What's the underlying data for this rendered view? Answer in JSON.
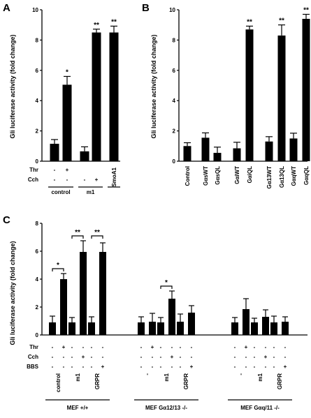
{
  "panels": [
    {
      "id": "A",
      "label": "A",
      "ylabel": "Gli luciferase activity (fold change)",
      "chart_data": {
        "type": "bar",
        "ylabel": "Gli luciferase activity (fold change)",
        "ylim": [
          0,
          10
        ],
        "yticks": [
          0,
          2,
          4,
          6,
          8,
          10
        ],
        "grid": false,
        "bars": [
          {
            "value": 1.15,
            "error": 0.28,
            "sig": ""
          },
          {
            "value": 5.05,
            "error": 0.55,
            "sig": "*"
          },
          {
            "value": 0.65,
            "error": 0.3,
            "sig": ""
          },
          {
            "value": 8.5,
            "error": 0.22,
            "sig": "**"
          },
          {
            "value": 8.5,
            "error": 0.42,
            "sig": "**"
          }
        ],
        "treatment_rows": [
          {
            "label": "Thr",
            "cells": [
              "-",
              "+",
              "",
              "",
              ""
            ]
          },
          {
            "label": "Cch",
            "cells": [
              "-",
              "-",
              "-",
              "+",
              ""
            ]
          }
        ],
        "groups": [
          {
            "label": "control",
            "bars": [
              0,
              1
            ]
          },
          {
            "label": "m1",
            "bars": [
              2,
              3
            ]
          },
          {
            "label": "SmoA1",
            "bars": [
              4
            ]
          }
        ]
      }
    },
    {
      "id": "B",
      "label": "B",
      "ylabel": "Gli luciferase activity (fold change)",
      "chart_data": {
        "type": "bar",
        "ylabel": "Gli luciferase activity (fold change)",
        "ylim": [
          0,
          10
        ],
        "yticks": [
          0,
          2,
          4,
          6,
          8,
          10
        ],
        "grid": false,
        "bars": [
          {
            "label": "Control",
            "value": 1.0,
            "error": 0.22,
            "sig": ""
          },
          {
            "label": "GαsWT",
            "value": 1.55,
            "error": 0.32,
            "sig": ""
          },
          {
            "label": "GαsQL",
            "value": 0.55,
            "error": 0.38,
            "sig": ""
          },
          {
            "label": "GαiWT",
            "value": 0.85,
            "error": 0.4,
            "sig": ""
          },
          {
            "label": "GαiQL",
            "value": 8.7,
            "error": 0.22,
            "sig": "**"
          },
          {
            "label": "Gα13WT",
            "value": 1.3,
            "error": 0.32,
            "sig": ""
          },
          {
            "label": "Gα13QL",
            "value": 8.3,
            "error": 0.7,
            "sig": "**"
          },
          {
            "label": "GαqWT",
            "value": 1.5,
            "error": 0.35,
            "sig": ""
          },
          {
            "label": "GαqQL",
            "value": 9.4,
            "error": 0.3,
            "sig": "**"
          }
        ]
      }
    },
    {
      "id": "C",
      "label": "C",
      "ylabel": "Gli luciferase activity (fold change)",
      "chart_data": {
        "type": "bar",
        "ylabel": "Gli luciferase activity (fold change)",
        "ylim": [
          0,
          8
        ],
        "yticks": [
          0,
          2,
          4,
          6,
          8
        ],
        "grid": false,
        "bars": [
          {
            "value": 0.9,
            "error": 0.45
          },
          {
            "value": 4.0,
            "error": 0.4
          },
          {
            "value": 0.9,
            "error": 0.35
          },
          {
            "value": 5.95,
            "error": 0.8
          },
          {
            "value": 0.9,
            "error": 0.4
          },
          {
            "value": 5.95,
            "error": 0.65
          },
          {
            "value": 0.9,
            "error": 0.4
          },
          {
            "value": 0.95,
            "error": 0.6
          },
          {
            "value": 0.9,
            "error": 0.35
          },
          {
            "value": 2.6,
            "error": 0.55
          },
          {
            "value": 0.95,
            "error": 0.55
          },
          {
            "value": 1.6,
            "error": 0.5
          },
          {
            "value": 0.9,
            "error": 0.35
          },
          {
            "value": 1.85,
            "error": 0.75
          },
          {
            "value": 0.9,
            "error": 0.3
          },
          {
            "value": 1.3,
            "error": 0.5
          },
          {
            "value": 0.9,
            "error": 0.45
          },
          {
            "value": 0.95,
            "error": 0.35
          }
        ],
        "brackets": [
          {
            "from": 0,
            "to": 1,
            "y": 4.75,
            "sig": "*"
          },
          {
            "from": 2,
            "to": 3,
            "y": 7.1,
            "sig": "**"
          },
          {
            "from": 4,
            "to": 5,
            "y": 7.1,
            "sig": "**"
          },
          {
            "from": 8,
            "to": 9,
            "y": 3.5,
            "sig": "*"
          }
        ],
        "treatment_rows": [
          {
            "label": "Thr",
            "cells": [
              "-",
              "+",
              "-",
              "-",
              "-",
              "-",
              "-",
              "+",
              "-",
              "-",
              "-",
              "-",
              "-",
              "+",
              "-",
              "-",
              "-",
              "-"
            ]
          },
          {
            "label": "Cch",
            "cells": [
              "-",
              "-",
              "-",
              "+",
              "-",
              "-",
              "-",
              "-",
              "-",
              "+",
              "-",
              "-",
              "-",
              "-",
              "-",
              "+",
              "-",
              "-"
            ]
          },
          {
            "label": "BBS",
            "cells": [
              "-",
              "-",
              "-",
              "-",
              "-",
              "+",
              "-",
              "-",
              "-",
              "-",
              "-",
              "+",
              "-",
              "-",
              "-",
              "-",
              "-",
              "+"
            ]
          }
        ],
        "groups": [
          {
            "label": "control",
            "bars": [
              0,
              1
            ]
          },
          {
            "label": "m1",
            "bars": [
              2,
              3
            ]
          },
          {
            "label": "GRPR",
            "bars": [
              4,
              5
            ]
          },
          {
            "label": "-",
            "bars": [
              6,
              7
            ]
          },
          {
            "label": "m1",
            "bars": [
              8,
              9
            ]
          },
          {
            "label": "GRPR",
            "bars": [
              10,
              11
            ]
          },
          {
            "label": "-",
            "bars": [
              12,
              13
            ]
          },
          {
            "label": "m1",
            "bars": [
              14,
              15
            ]
          },
          {
            "label": "GRPR",
            "bars": [
              16,
              17
            ]
          }
        ],
        "supergroups": [
          {
            "label": "MEF +/+",
            "groups": [
              0,
              1,
              2
            ]
          },
          {
            "label": "MEF Gα12/13 -/-",
            "groups": [
              3,
              4,
              5
            ]
          },
          {
            "label": "MEF Gαq/11 -/-",
            "groups": [
              6,
              7,
              8
            ]
          }
        ]
      }
    }
  ]
}
